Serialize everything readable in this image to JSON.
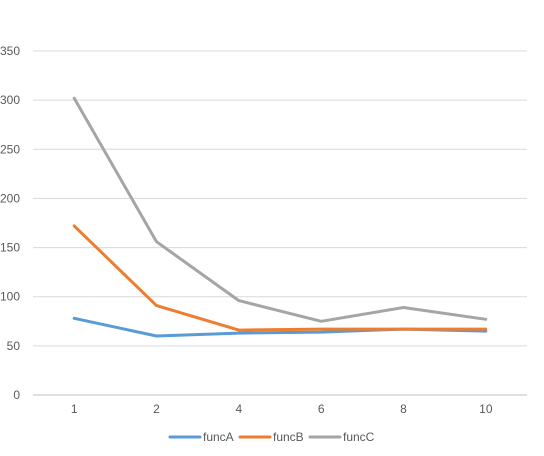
{
  "chart_data": {
    "type": "line",
    "categories": [
      "1",
      "2",
      "4",
      "6",
      "8",
      "10"
    ],
    "series": [
      {
        "name": "funcA",
        "color": "#5b9bd5",
        "values": [
          78,
          60,
          63,
          64,
          67,
          65
        ]
      },
      {
        "name": "funcB",
        "color": "#ed7d31",
        "values": [
          172,
          91,
          66,
          67,
          67,
          67
        ]
      },
      {
        "name": "funcC",
        "color": "#a5a5a5",
        "values": [
          302,
          156,
          96,
          75,
          89,
          77
        ]
      }
    ],
    "ylim": [
      0,
      350
    ],
    "yticks": [
      0,
      50,
      100,
      150,
      200,
      250,
      300,
      350
    ],
    "grid": true,
    "legend": "bottom"
  }
}
